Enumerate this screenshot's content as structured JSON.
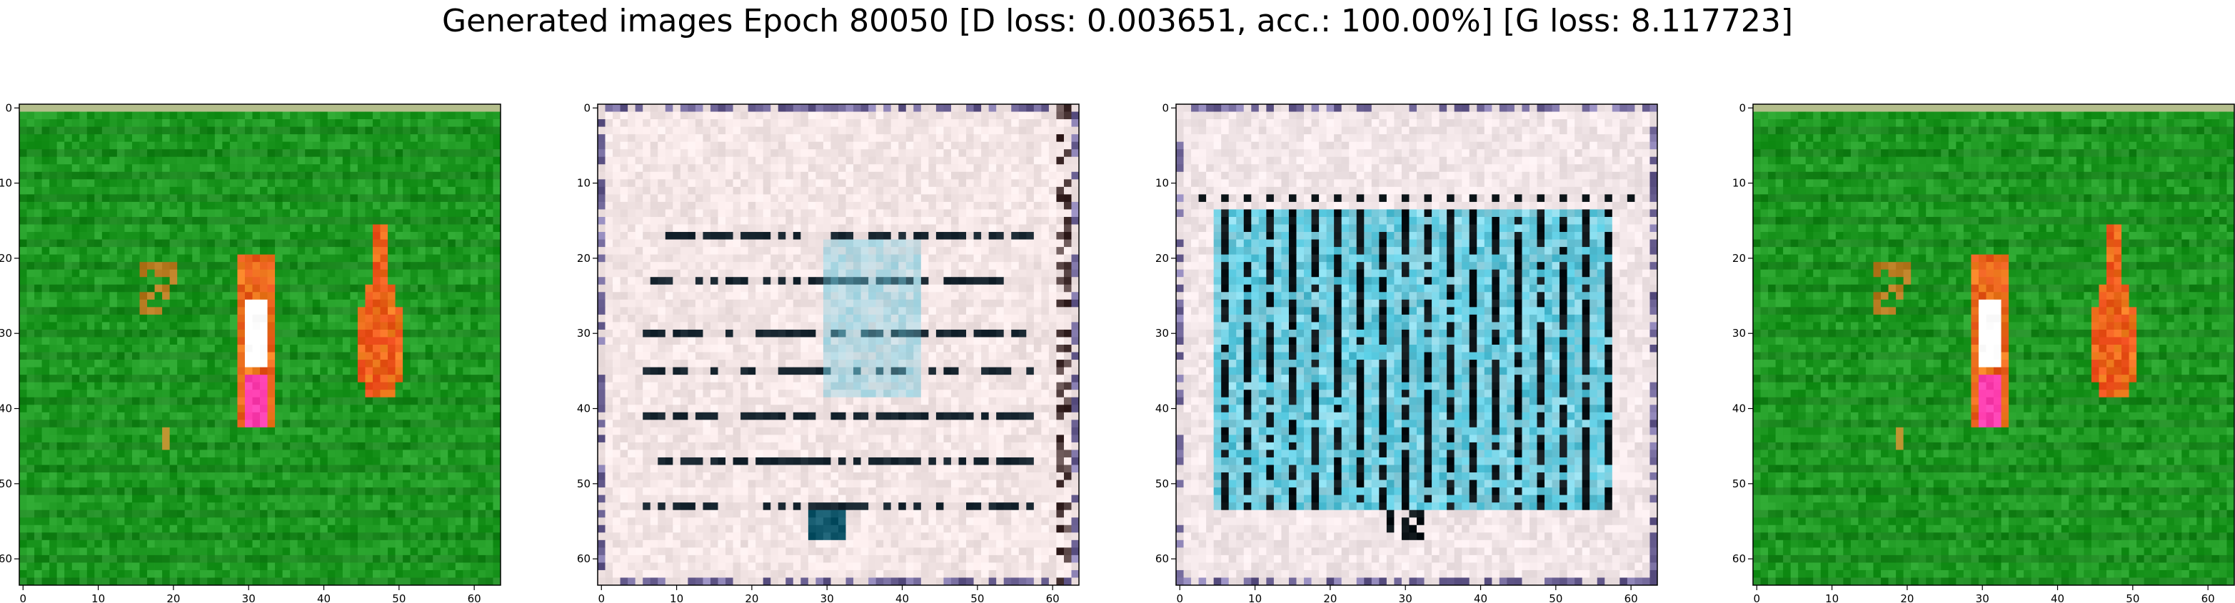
{
  "title": "Generated images Epoch 80050 [D loss: 0.003651, acc.: 100.00%] [G loss: 8.117723]",
  "chart_data": [
    {
      "type": "heatmap",
      "panel": "image-1",
      "description": "green background with orange/red vertical streaks",
      "palette": {
        "background": "#1f9a23",
        "accent": "#f08020",
        "highlight": "#ffffff",
        "pink": "#ff3fb0"
      },
      "x_ticks": [
        0,
        10,
        20,
        30,
        40,
        50,
        60
      ],
      "y_ticks": [
        0,
        10,
        20,
        30,
        40,
        50,
        60
      ],
      "xlim": [
        -0.5,
        63.5
      ],
      "ylim": [
        63.5,
        -0.5
      ]
    },
    {
      "type": "heatmap",
      "panel": "image-2",
      "description": "pale pink/white background with dark horizontal lines and cyan patch",
      "palette": {
        "background": "#f4e6e6",
        "line": "#12202a",
        "accent": "#6ec7dc"
      },
      "x_ticks": [
        0,
        10,
        20,
        30,
        40,
        50,
        60
      ],
      "y_ticks": [
        0,
        10,
        20,
        30,
        40,
        50,
        60
      ],
      "xlim": [
        -0.5,
        63.5
      ],
      "ylim": [
        63.5,
        -0.5
      ]
    },
    {
      "type": "heatmap",
      "panel": "image-3",
      "description": "pale background with cyan block and dark vertical stripes",
      "palette": {
        "background": "#f2e6e8",
        "block": "#4bbfd6",
        "stripe": "#0c1418"
      },
      "x_ticks": [
        0,
        10,
        20,
        30,
        40,
        50,
        60
      ],
      "y_ticks": [
        0,
        10,
        20,
        30,
        40,
        50,
        60
      ],
      "xlim": [
        -0.5,
        63.5
      ],
      "ylim": [
        63.5,
        -0.5
      ]
    },
    {
      "type": "heatmap",
      "panel": "image-4",
      "description": "green background with orange/red vertical streaks",
      "palette": {
        "background": "#1f9a23",
        "accent": "#f08020",
        "highlight": "#ffffff",
        "pink": "#ff3fb0"
      },
      "x_ticks": [
        0,
        10,
        20,
        30,
        40,
        50,
        60
      ],
      "y_ticks": [
        0,
        10,
        20,
        30,
        40,
        50,
        60
      ],
      "xlim": [
        -0.5,
        63.5
      ],
      "ylim": [
        63.5,
        -0.5
      ]
    }
  ]
}
